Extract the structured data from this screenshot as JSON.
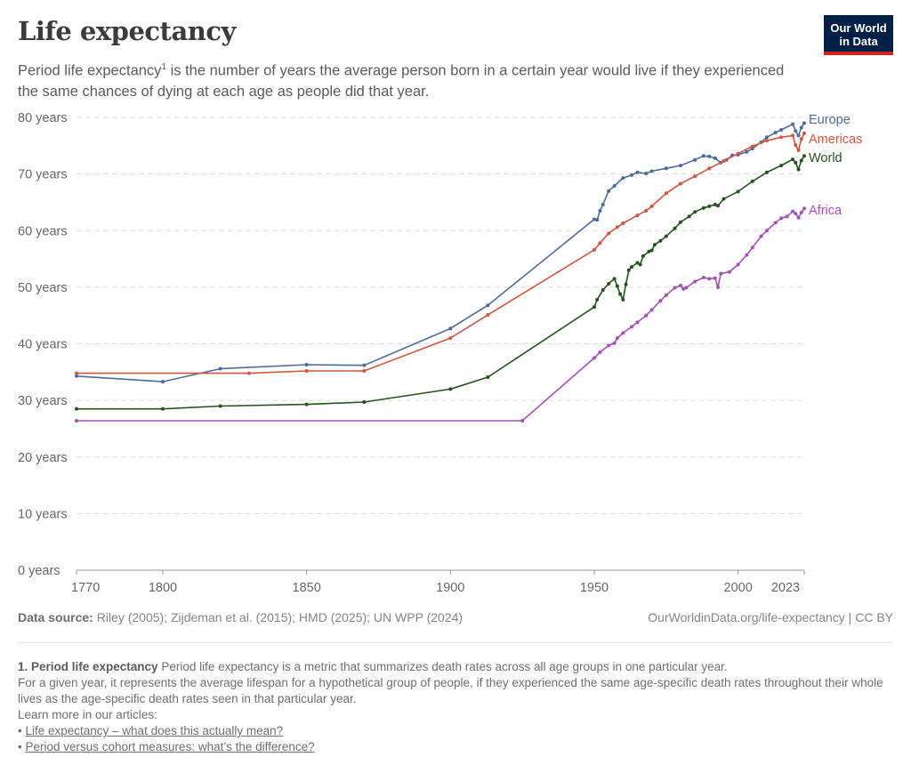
{
  "header": {
    "title": "Life expectancy",
    "subtitle_main": "Period life expectancy",
    "subtitle_sup": "1",
    "subtitle_rest": " is the number of years the average person born in a certain year would live if they experienced the same chances of dying at each age as people did that year.",
    "logo_text": "Our World in Data"
  },
  "colors": {
    "Europe": "#4c6a9c",
    "Americas": "#d1553f",
    "World": "#24531e",
    "Africa": "#a54fb8",
    "logo_bg": "#002147",
    "logo_bar": "#ce261e"
  },
  "chart_data": {
    "type": "line",
    "title": "Life expectancy",
    "ylim": [
      0,
      80
    ],
    "xlim": [
      1770,
      2023
    ],
    "y_ticks": [
      "0 years",
      "10 years",
      "20 years",
      "30 years",
      "40 years",
      "50 years",
      "60 years",
      "70 years",
      "80 years"
    ],
    "y_tick_values": [
      0,
      10,
      20,
      30,
      40,
      50,
      60,
      70,
      80
    ],
    "x_ticks": [
      "1770",
      "1800",
      "1850",
      "1900",
      "1950",
      "2000",
      "2023"
    ],
    "x_tick_values": [
      1770,
      1800,
      1850,
      1900,
      1950,
      2000,
      2023
    ],
    "grid": "horizontal dashed",
    "legend": "right, labels at line ends",
    "series": [
      {
        "name": "Europe",
        "points": [
          [
            1770,
            34.3
          ],
          [
            1800,
            33.3
          ],
          [
            1820,
            35.6
          ],
          [
            1850,
            36.3
          ],
          [
            1870,
            36.2
          ],
          [
            1900,
            42.7
          ],
          [
            1913,
            46.8
          ],
          [
            1950,
            62.0
          ],
          [
            1951,
            61.9
          ],
          [
            1952,
            63.5
          ],
          [
            1953,
            64.6
          ],
          [
            1955,
            67.0
          ],
          [
            1957,
            67.9
          ],
          [
            1960,
            69.3
          ],
          [
            1963,
            69.8
          ],
          [
            1965,
            70.3
          ],
          [
            1968,
            70.1
          ],
          [
            1970,
            70.5
          ],
          [
            1975,
            71.0
          ],
          [
            1980,
            71.5
          ],
          [
            1985,
            72.5
          ],
          [
            1988,
            73.2
          ],
          [
            1990,
            73.1
          ],
          [
            1992,
            72.8
          ],
          [
            1994,
            72.0
          ],
          [
            1996,
            72.5
          ],
          [
            1998,
            73.3
          ],
          [
            2000,
            73.4
          ],
          [
            2003,
            73.9
          ],
          [
            2005,
            74.5
          ],
          [
            2008,
            75.6
          ],
          [
            2010,
            76.5
          ],
          [
            2013,
            77.3
          ],
          [
            2015,
            77.8
          ],
          [
            2019,
            78.8
          ],
          [
            2020,
            77.6
          ],
          [
            2021,
            76.8
          ],
          [
            2022,
            78.2
          ],
          [
            2023,
            79.0
          ]
        ]
      },
      {
        "name": "Americas",
        "points": [
          [
            1770,
            34.8
          ],
          [
            1830,
            34.8
          ],
          [
            1850,
            35.2
          ],
          [
            1870,
            35.2
          ],
          [
            1900,
            41.0
          ],
          [
            1913,
            45.1
          ],
          [
            1950,
            56.6
          ],
          [
            1952,
            57.8
          ],
          [
            1955,
            59.5
          ],
          [
            1958,
            60.6
          ],
          [
            1960,
            61.3
          ],
          [
            1965,
            62.7
          ],
          [
            1968,
            63.5
          ],
          [
            1970,
            64.3
          ],
          [
            1975,
            66.6
          ],
          [
            1980,
            68.3
          ],
          [
            1985,
            69.6
          ],
          [
            1990,
            71.0
          ],
          [
            1995,
            72.3
          ],
          [
            2000,
            73.6
          ],
          [
            2005,
            74.9
          ],
          [
            2010,
            75.9
          ],
          [
            2015,
            76.5
          ],
          [
            2019,
            76.8
          ],
          [
            2020,
            75.1
          ],
          [
            2021,
            74.2
          ],
          [
            2022,
            76.2
          ],
          [
            2023,
            77.2
          ]
        ]
      },
      {
        "name": "World",
        "points": [
          [
            1770,
            28.5
          ],
          [
            1800,
            28.5
          ],
          [
            1820,
            29.0
          ],
          [
            1850,
            29.3
          ],
          [
            1870,
            29.7
          ],
          [
            1900,
            32.0
          ],
          [
            1913,
            34.1
          ],
          [
            1950,
            46.5
          ],
          [
            1951,
            47.8
          ],
          [
            1953,
            49.5
          ],
          [
            1955,
            50.6
          ],
          [
            1957,
            51.5
          ],
          [
            1958,
            50.2
          ],
          [
            1959,
            48.8
          ],
          [
            1960,
            47.8
          ],
          [
            1961,
            50.5
          ],
          [
            1962,
            53.0
          ],
          [
            1963,
            53.6
          ],
          [
            1965,
            54.3
          ],
          [
            1966,
            54.0
          ],
          [
            1967,
            55.5
          ],
          [
            1969,
            56.3
          ],
          [
            1970,
            56.5
          ],
          [
            1971,
            57.5
          ],
          [
            1973,
            58.2
          ],
          [
            1975,
            59.0
          ],
          [
            1978,
            60.4
          ],
          [
            1980,
            61.5
          ],
          [
            1983,
            62.5
          ],
          [
            1985,
            63.3
          ],
          [
            1988,
            64.0
          ],
          [
            1990,
            64.3
          ],
          [
            1992,
            64.6
          ],
          [
            1993,
            64.4
          ],
          [
            1995,
            65.6
          ],
          [
            2000,
            66.9
          ],
          [
            2005,
            68.7
          ],
          [
            2010,
            70.3
          ],
          [
            2015,
            71.5
          ],
          [
            2019,
            72.6
          ],
          [
            2020,
            72.0
          ],
          [
            2021,
            70.8
          ],
          [
            2022,
            72.4
          ],
          [
            2023,
            73.2
          ]
        ]
      },
      {
        "name": "Africa",
        "points": [
          [
            1770,
            26.4
          ],
          [
            1925,
            26.4
          ],
          [
            1950,
            37.5
          ],
          [
            1952,
            38.5
          ],
          [
            1955,
            39.7
          ],
          [
            1957,
            40.1
          ],
          [
            1958,
            41.0
          ],
          [
            1960,
            41.9
          ],
          [
            1963,
            43.0
          ],
          [
            1965,
            43.8
          ],
          [
            1968,
            45.0
          ],
          [
            1970,
            46.0
          ],
          [
            1973,
            47.6
          ],
          [
            1975,
            48.6
          ],
          [
            1978,
            49.9
          ],
          [
            1980,
            50.3
          ],
          [
            1981,
            49.7
          ],
          [
            1982,
            49.9
          ],
          [
            1985,
            51.0
          ],
          [
            1988,
            51.7
          ],
          [
            1990,
            51.5
          ],
          [
            1992,
            51.6
          ],
          [
            1993,
            50.0
          ],
          [
            1994,
            52.4
          ],
          [
            1997,
            52.7
          ],
          [
            2000,
            54.0
          ],
          [
            2003,
            55.7
          ],
          [
            2005,
            57.0
          ],
          [
            2008,
            59.0
          ],
          [
            2010,
            60.0
          ],
          [
            2013,
            61.4
          ],
          [
            2015,
            62.2
          ],
          [
            2017,
            62.5
          ],
          [
            2019,
            63.4
          ],
          [
            2020,
            63.0
          ],
          [
            2021,
            62.3
          ],
          [
            2022,
            63.2
          ],
          [
            2023,
            63.9
          ]
        ]
      }
    ]
  },
  "footer": {
    "source_label": "Data source:",
    "source_text": " Riley (2005); Zijdeman et al. (2015); HMD (2025); UN WPP (2024)",
    "url": "OurWorldinData.org/life-expectancy | CC BY",
    "note_title": "1. Period life expectancy",
    "note_text": " Period life expectancy is a metric that summarizes death rates across all age groups in one particular year.",
    "note_line2": "For a given year, it represents the average lifespan for a hypothetical group of people, if they experienced the same age-specific death rates throughout their whole lives as the age-specific death rates seen in that particular year.",
    "learn_more": "Learn more in our articles:",
    "links": [
      "Life expectancy – what does this actually mean?",
      "Period versus cohort measures: what’s the difference?"
    ]
  }
}
